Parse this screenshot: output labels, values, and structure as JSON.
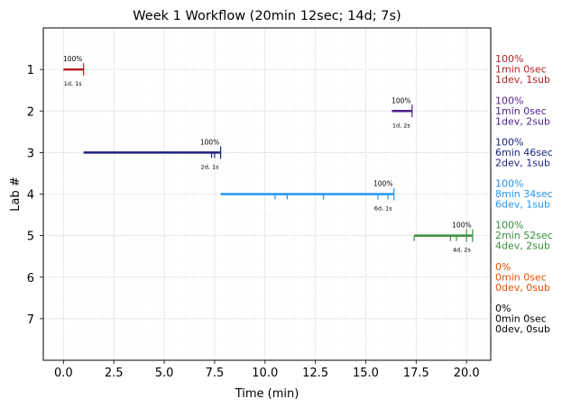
{
  "chart_data": {
    "type": "timeline",
    "title": "Week 1 Workflow (20min 12sec; 14d; 7s)",
    "xlabel": "Time (min)",
    "ylabel": "Lab #",
    "xlim": [
      -1,
      21.2
    ],
    "ylim": [
      8,
      0
    ],
    "xticks": [
      0.0,
      2.5,
      5.0,
      7.5,
      10.0,
      12.5,
      15.0,
      17.5,
      20.0
    ],
    "xtick_labels": [
      "0.0",
      "2.5",
      "5.0",
      "7.5",
      "10.0",
      "12.5",
      "15.0",
      "17.5",
      "20.0"
    ],
    "yticks": [
      1,
      2,
      3,
      4,
      5,
      6,
      7
    ],
    "ytick_labels": [
      "1",
      "2",
      "3",
      "4",
      "5",
      "6",
      "7"
    ],
    "grid": true,
    "labs": [
      {
        "lab": 1,
        "color": "#b22222",
        "start": 0.0,
        "end": 1.0,
        "marks": [
          1.0
        ],
        "pct_label": "100%",
        "ds_label": "1d, 1s",
        "side_label": [
          "100%",
          "1min 0sec",
          "1dev, 1sub"
        ]
      },
      {
        "lab": 2,
        "color": "#4b1f8a",
        "start": 16.3,
        "end": 17.3,
        "marks": [
          17.3
        ],
        "pct_label": "100%",
        "ds_label": "1d, 2s",
        "side_label": [
          "100%",
          "1min 0sec",
          "1dev, 2sub"
        ]
      },
      {
        "lab": 3,
        "color": "#1a237e",
        "start": 1.0,
        "end": 7.8,
        "marks": [
          7.8
        ],
        "submarks": [
          7.35,
          7.5
        ],
        "pct_label": "100%",
        "ds_label": "2d, 1s",
        "side_label": [
          "100%",
          "6min 46sec",
          "2dev, 1sub"
        ]
      },
      {
        "lab": 4,
        "color": "#2196f3",
        "start": 7.8,
        "end": 16.4,
        "marks": [
          16.4
        ],
        "submarks": [
          10.5,
          11.1,
          12.9,
          15.6,
          16.1
        ],
        "pct_label": "100%",
        "ds_label": "6d, 1s",
        "side_label": [
          "100%",
          "8min 34sec",
          "6dev, 1sub"
        ]
      },
      {
        "lab": 5,
        "color": "#388e3c",
        "start": 17.4,
        "end": 20.3,
        "marks": [
          20.0,
          20.3
        ],
        "submarks": [
          17.4,
          19.2,
          19.5
        ],
        "pct_label": "100%",
        "ds_label": "4d, 2s",
        "side_label": [
          "100%",
          "2min 52sec",
          "4dev, 2sub"
        ]
      },
      {
        "lab": 6,
        "color": "#e65100",
        "start": null,
        "end": null,
        "marks": [],
        "pct_label": "",
        "ds_label": "",
        "side_label": [
          "0%",
          "0min 0sec",
          "0dev, 0sub"
        ]
      },
      {
        "lab": 7,
        "color": "#000000",
        "start": null,
        "end": null,
        "marks": [],
        "pct_label": "",
        "ds_label": "",
        "side_label": [
          "0%",
          "0min 0sec",
          "0dev, 0sub"
        ]
      }
    ]
  }
}
